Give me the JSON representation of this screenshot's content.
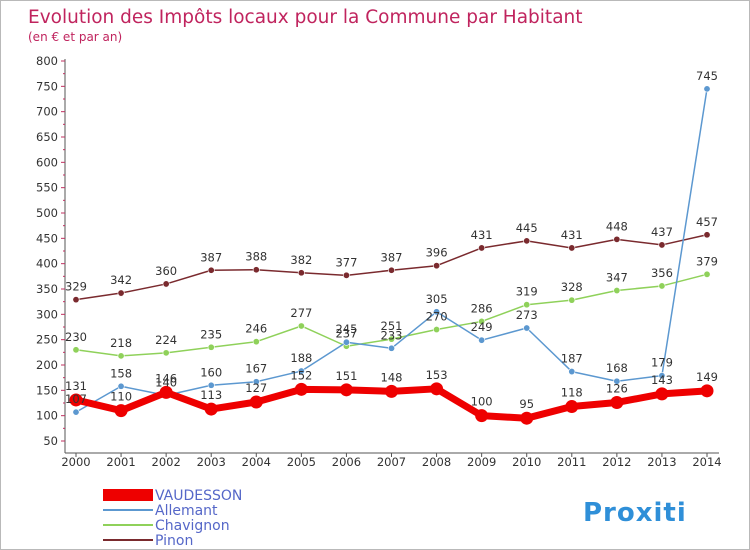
{
  "chart_data": {
    "type": "line",
    "title": "Evolution des Impôts locaux pour la Commune par Habitant",
    "subtitle": "(en € et par an)",
    "xlabel": "",
    "ylabel": "",
    "ylim": [
      50,
      800
    ],
    "yticks": [
      50,
      100,
      150,
      200,
      250,
      300,
      350,
      400,
      450,
      500,
      550,
      600,
      650,
      700,
      750,
      800
    ],
    "grid": "off",
    "legend_position": "bottom-left",
    "x": [
      "2000",
      "2001",
      "2002",
      "2003",
      "2004",
      "2005",
      "2006",
      "2007",
      "2008",
      "2009",
      "2010",
      "2011",
      "2012",
      "2013",
      "2014"
    ],
    "series": [
      {
        "name": "Pinon",
        "color": "#7a2a2e",
        "values": [
          329,
          342,
          360,
          387,
          388,
          382,
          377,
          387,
          396,
          431,
          445,
          431,
          448,
          437,
          457
        ]
      },
      {
        "name": "Chavignon",
        "color": "#8fd15a",
        "values": [
          230,
          218,
          224,
          235,
          246,
          277,
          237,
          251,
          270,
          286,
          319,
          328,
          347,
          356,
          379
        ]
      },
      {
        "name": "Allemant",
        "color": "#5c98d0",
        "values": [
          107,
          158,
          140,
          160,
          167,
          188,
          245,
          233,
          305,
          249,
          273,
          187,
          168,
          179,
          745
        ]
      },
      {
        "name": "VAUDESSON",
        "color": "#ee0000",
        "values": [
          131,
          110,
          146,
          113,
          127,
          152,
          151,
          148,
          153,
          100,
          95,
          118,
          126,
          143,
          149
        ]
      }
    ],
    "data_labels": {
      "Pinon": [
        "329",
        "342",
        "360",
        "387",
        "388",
        "382",
        "377",
        "387",
        "396",
        "431",
        "445",
        "431",
        "448",
        "437",
        "457"
      ],
      "Chavignon": [
        "230",
        "218",
        "224",
        "235",
        "246",
        "277",
        "237",
        "251",
        "270",
        "286",
        "319",
        "328",
        "347",
        "356",
        "379"
      ],
      "Allemant": [
        "107",
        "158",
        "140",
        "160",
        "167",
        "188",
        "245",
        "233",
        "305",
        "249",
        "273",
        "187",
        "168",
        "179",
        "745"
      ],
      "VAUDESSON": [
        "131",
        "110",
        "146",
        "113",
        "127",
        "152",
        "151",
        "148",
        "153",
        "100",
        "95",
        "118",
        "126",
        "143",
        "149"
      ]
    }
  },
  "colors": {
    "title": "#c0245e",
    "axis": "#555555",
    "legend_text": "#5567c8"
  },
  "branding": {
    "logo_text": "Proxiti"
  }
}
